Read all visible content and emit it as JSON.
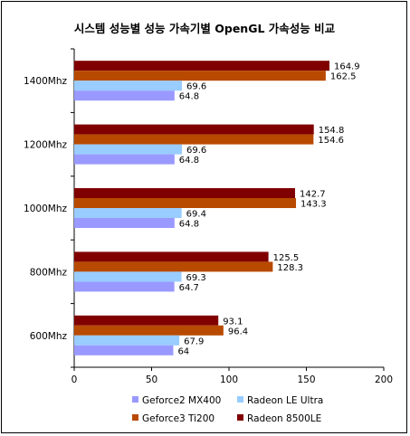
{
  "chart_data": {
    "type": "bar",
    "orientation": "horizontal",
    "title": "시스템 성능별 성능 가속기별 OpenGL 가속성능 비교",
    "categories": [
      "1400Mhz",
      "1200Mhz",
      "1000Mhz",
      "800Mhz",
      "600Mhz"
    ],
    "series": [
      {
        "name": "Radeon 8500LE",
        "color": "#800000",
        "values": [
          164.9,
          154.8,
          142.7,
          125.5,
          93.1
        ]
      },
      {
        "name": "Geforce3 Ti200",
        "color": "#b84a00",
        "values": [
          162.5,
          154.6,
          143.3,
          128.3,
          96.4
        ]
      },
      {
        "name": "Radeon LE Ultra",
        "color": "#99ccff",
        "values": [
          69.6,
          69.6,
          69.4,
          69.3,
          67.9
        ]
      },
      {
        "name": "Geforce2 MX400",
        "color": "#9999ff",
        "values": [
          64.8,
          64.8,
          64.8,
          64.7,
          64
        ]
      }
    ],
    "xlim": [
      0,
      200
    ],
    "xticks": [
      0,
      50,
      100,
      150,
      200
    ],
    "grid": false,
    "legend": {
      "placement": "bottom",
      "order": [
        "Geforce2 MX400",
        "Radeon LE Ultra",
        "Geforce3 Ti200",
        "Radeon 8500LE"
      ]
    }
  }
}
